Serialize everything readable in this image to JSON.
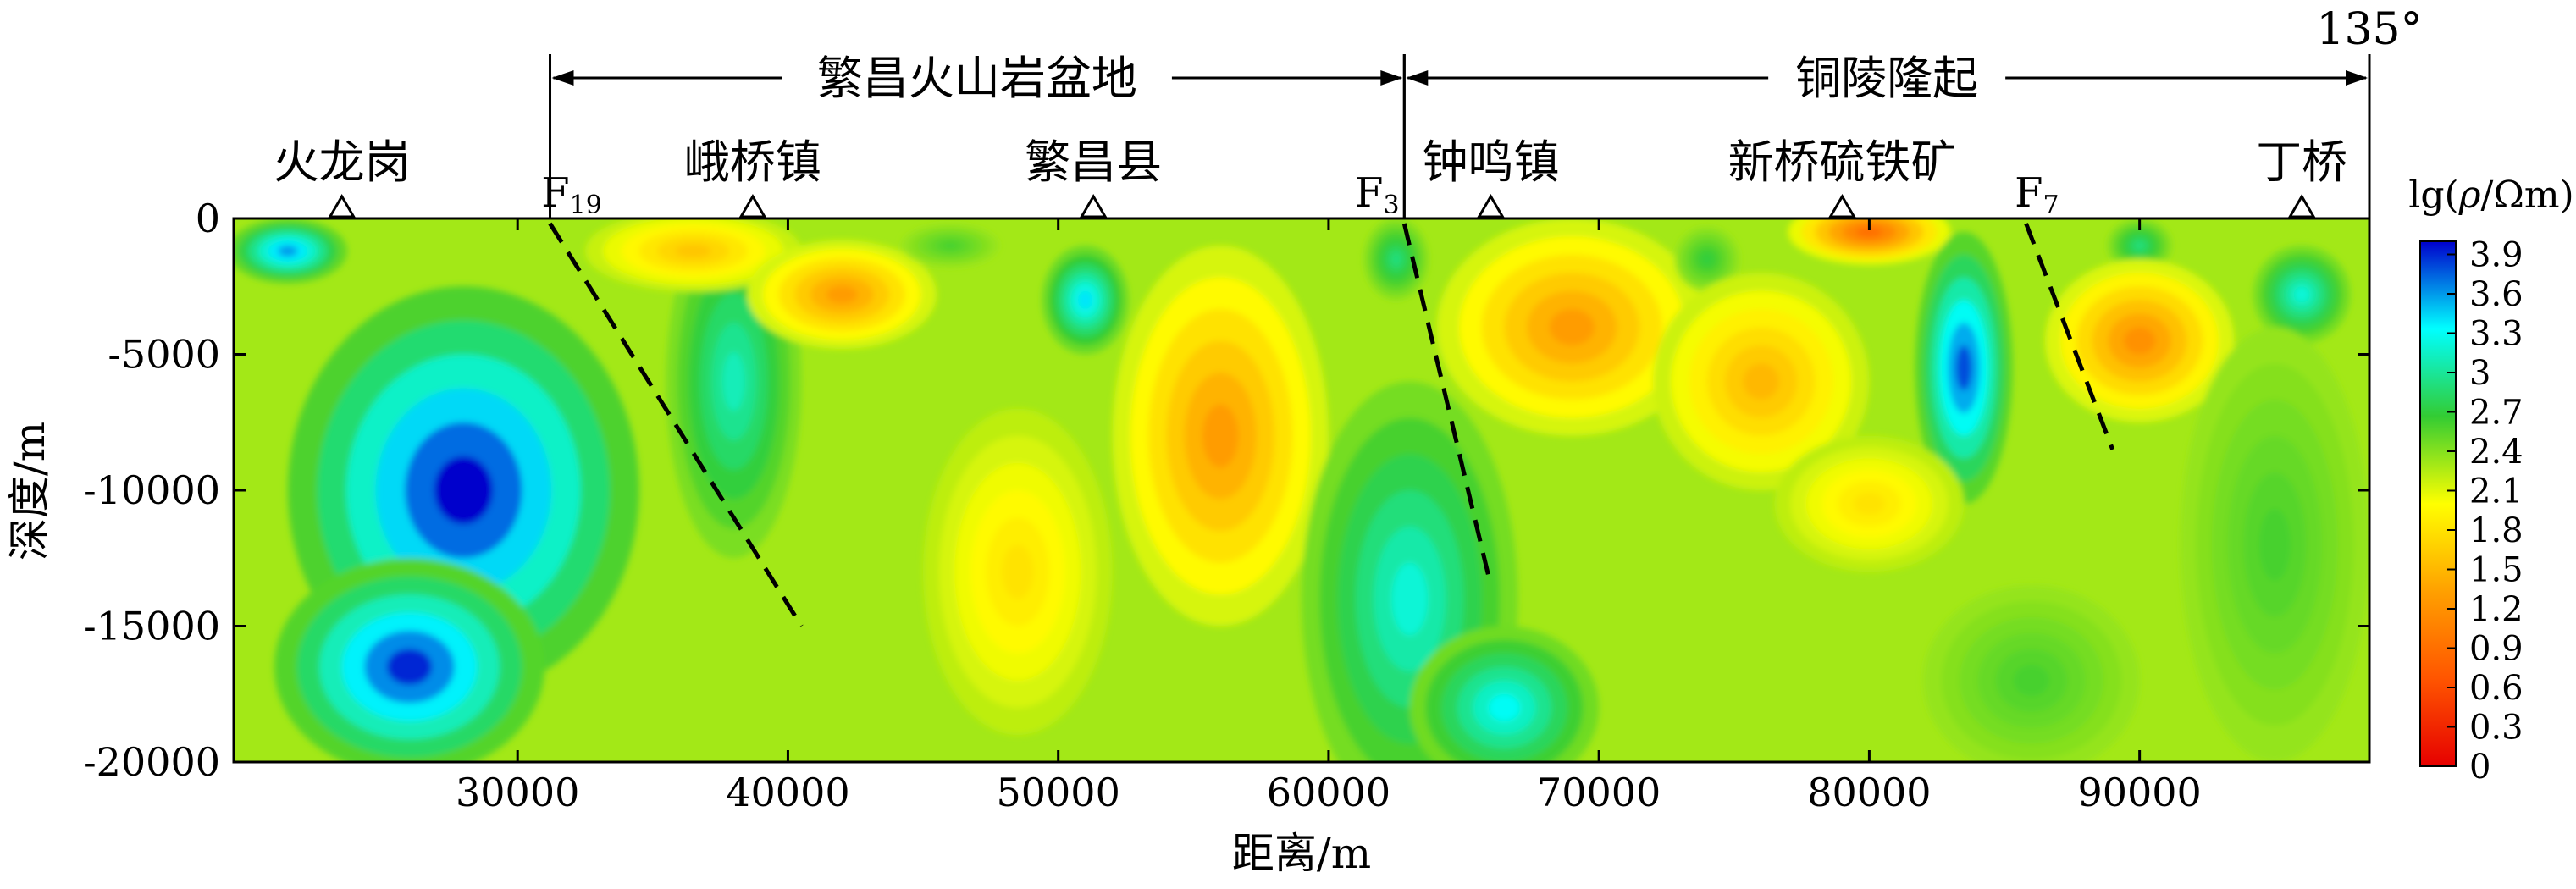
{
  "chart_data": {
    "type": "heatmap",
    "xlabel": "距离/m",
    "ylabel": "深度/m",
    "xlim": [
      19500,
      98500
    ],
    "ylim": [
      -20000,
      0
    ],
    "x_ticks": [
      30000,
      40000,
      50000,
      60000,
      70000,
      80000,
      90000
    ],
    "y_ticks": [
      0,
      -5000,
      -10000,
      -15000,
      -20000
    ],
    "x_tick_labels": [
      "30000",
      "40000",
      "50000",
      "60000",
      "70000",
      "80000",
      "90000"
    ],
    "y_tick_labels": [
      "0",
      "-5000",
      "-10000",
      "-15000",
      "-20000"
    ],
    "colorbar": {
      "title_prefix": "lg(",
      "title_symbol": "ρ",
      "title_suffix": "/Ωm)",
      "min": 0,
      "max": 4,
      "ticks": [
        "0",
        "0.3",
        "0.6",
        "0.9",
        "1.2",
        "1.5",
        "1.8",
        "2.1",
        "2.4",
        "2.7",
        "3",
        "3.3",
        "3.6",
        "3.9"
      ],
      "tick_values": [
        0,
        0.3,
        0.6,
        0.9,
        1.2,
        1.5,
        1.8,
        2.1,
        2.4,
        2.7,
        3,
        3.3,
        3.6,
        3.9
      ],
      "colors": [
        "#e60000",
        "#ff5500",
        "#ffa000",
        "#ffff00",
        "#33cc33",
        "#00ffff",
        "#0000cc"
      ]
    },
    "background_log_resistivity": 2.3,
    "anomalies": [
      {
        "x": 21500,
        "depth": -1200,
        "value": 3.6,
        "rx": 2200,
        "ry": 1200
      },
      {
        "x": 28000,
        "depth": -10000,
        "value": 4.0,
        "rx": 6500,
        "ry": 7500
      },
      {
        "x": 26000,
        "depth": -16500,
        "value": 3.9,
        "rx": 5000,
        "ry": 4000
      },
      {
        "x": 38000,
        "depth": -6000,
        "value": 3.1,
        "rx": 2500,
        "ry": 6500
      },
      {
        "x": 36500,
        "depth": -1200,
        "value": 1.6,
        "rx": 4000,
        "ry": 1500
      },
      {
        "x": 42000,
        "depth": -2800,
        "value": 1.3,
        "rx": 3500,
        "ry": 2000
      },
      {
        "x": 46000,
        "depth": -1000,
        "value": 2.6,
        "rx": 1800,
        "ry": 800
      },
      {
        "x": 51000,
        "depth": -3000,
        "value": 3.4,
        "rx": 1600,
        "ry": 2000
      },
      {
        "x": 48500,
        "depth": -13000,
        "value": 1.8,
        "rx": 3500,
        "ry": 6000
      },
      {
        "x": 56000,
        "depth": -8000,
        "value": 1.3,
        "rx": 4000,
        "ry": 7000
      },
      {
        "x": 62500,
        "depth": -1500,
        "value": 2.9,
        "rx": 1200,
        "ry": 1500
      },
      {
        "x": 63000,
        "depth": -14000,
        "value": 3.2,
        "rx": 4000,
        "ry": 8000
      },
      {
        "x": 66500,
        "depth": -18000,
        "value": 3.3,
        "rx": 3500,
        "ry": 3000
      },
      {
        "x": 69000,
        "depth": -4000,
        "value": 1.3,
        "rx": 5000,
        "ry": 4000
      },
      {
        "x": 74000,
        "depth": -1500,
        "value": 2.7,
        "rx": 1200,
        "ry": 1200
      },
      {
        "x": 76000,
        "depth": -6000,
        "value": 1.5,
        "rx": 4000,
        "ry": 4000
      },
      {
        "x": 80000,
        "depth": -500,
        "value": 0.9,
        "rx": 3000,
        "ry": 1200
      },
      {
        "x": 83500,
        "depth": -5500,
        "value": 3.8,
        "rx": 1800,
        "ry": 5000
      },
      {
        "x": 80000,
        "depth": -10500,
        "value": 1.8,
        "rx": 3500,
        "ry": 2500
      },
      {
        "x": 86000,
        "depth": -17000,
        "value": 2.6,
        "rx": 4000,
        "ry": 3500
      },
      {
        "x": 90000,
        "depth": -1000,
        "value": 2.9,
        "rx": 1200,
        "ry": 1000
      },
      {
        "x": 90000,
        "depth": -4500,
        "value": 1.2,
        "rx": 3500,
        "ry": 3000
      },
      {
        "x": 96000,
        "depth": -2800,
        "value": 3.2,
        "rx": 1800,
        "ry": 1800
      },
      {
        "x": 95000,
        "depth": -12000,
        "value": 2.6,
        "rx": 3500,
        "ry": 8000
      }
    ],
    "stations": [
      {
        "label": "火龙岗",
        "x": 23500
      },
      {
        "label": "峨桥镇",
        "x": 38700
      },
      {
        "label": "繁昌县",
        "x": 51300
      },
      {
        "label": "钟鸣镇",
        "x": 66000
      },
      {
        "label": "新桥硫铁矿",
        "x": 79000
      },
      {
        "label": "丁桥",
        "x": 96000
      }
    ],
    "faults": [
      {
        "base": "F",
        "sub": "19",
        "label_x": 32000,
        "top": [
          31200,
          0
        ],
        "bottom": [
          40500,
          -15000
        ]
      },
      {
        "base": "F",
        "sub": "3",
        "label_x": 61800,
        "top": [
          62800,
          0
        ],
        "bottom": [
          66000,
          -13500
        ]
      },
      {
        "base": "F",
        "sub": "7",
        "label_x": 86200,
        "top": [
          85800,
          0
        ],
        "bottom": [
          89000,
          -8500
        ]
      }
    ],
    "regions": [
      {
        "label": "繁昌火山岩盆地",
        "x_start": 31200,
        "x_end": 62800
      },
      {
        "label": "铜陵隆起",
        "x_start": 62800,
        "x_end": 98500
      }
    ],
    "azimuth_label": "135°"
  }
}
